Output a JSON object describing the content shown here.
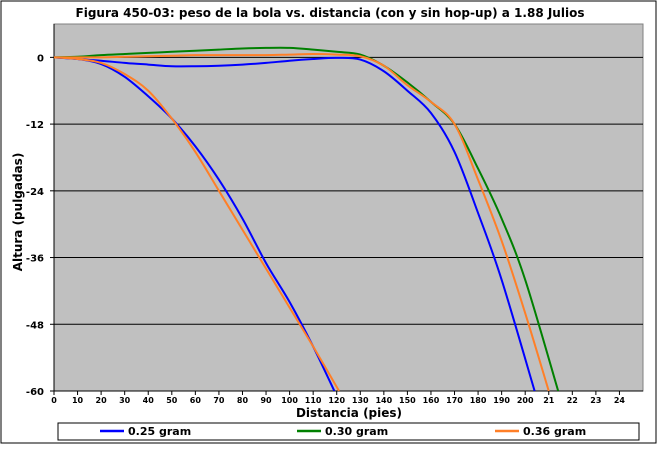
{
  "chart_data": {
    "type": "line",
    "title": "Figura 450-03: peso de la bola vs. distancia (con y sin hop-up) a 1.88 Julios",
    "xlabel": "Distancia (pies)",
    "ylabel": "Altura (pulgadas)",
    "xlim": [
      0,
      250
    ],
    "ylim": [
      -60,
      6
    ],
    "x_tick_labels": [
      "0",
      "10",
      "20",
      "30",
      "40",
      "50",
      "60",
      "70",
      "80",
      "90",
      "100",
      "110",
      "120",
      "130",
      "140",
      "150",
      "160",
      "170",
      "180",
      "190",
      "200",
      "21",
      "22",
      "23",
      "24"
    ],
    "y_ticks": [
      0,
      -12,
      -24,
      -36,
      -48,
      -60
    ],
    "grid": "horizontal",
    "legend_position": "bottom",
    "series": [
      {
        "name": "0.25 gram",
        "color": "#0000ff",
        "curves": [
          {
            "x": [
              0,
              10,
              20,
              30,
              40,
              50,
              60,
              70,
              80,
              90,
              100,
              110,
              119
            ],
            "y": [
              0,
              -0.3,
              -1.2,
              -3.5,
              -7,
              -11,
              -16,
              -22,
              -29,
              -37,
              -44,
              -52,
              -60
            ]
          },
          {
            "x": [
              0,
              10,
              20,
              30,
              40,
              50,
              60,
              70,
              80,
              90,
              100,
              110,
              120,
              130,
              140,
              150,
              160,
              170,
              180,
              190,
              204
            ],
            "y": [
              0,
              -0.3,
              -0.6,
              -1,
              -1.3,
              -1.6,
              -1.6,
              -1.5,
              -1.3,
              -1,
              -0.6,
              -0.3,
              -0.1,
              -0.4,
              -2.5,
              -6,
              -10,
              -17,
              -28,
              -40,
              -60
            ]
          }
        ]
      },
      {
        "name": "0.30 gram",
        "color": "#008000",
        "curves": [
          {
            "x": [
              0,
              10,
              20,
              30,
              40,
              50,
              60,
              70,
              80,
              90,
              100,
              110,
              120,
              130,
              140,
              150,
              160,
              170,
              180,
              190,
              200,
              214
            ],
            "y": [
              0,
              0.1,
              0.4,
              0.6,
              0.8,
              1,
              1.2,
              1.4,
              1.6,
              1.7,
              1.7,
              1.4,
              1,
              0.5,
              -1.5,
              -4.5,
              -8,
              -12,
              -20,
              -29,
              -40,
              -60
            ]
          }
        ]
      },
      {
        "name": "0.36 gram",
        "color": "#ff7f27",
        "curves": [
          {
            "x": [
              0,
              10,
              20,
              30,
              40,
              50,
              60,
              70,
              80,
              90,
              100,
              110,
              121
            ],
            "y": [
              0,
              -0.3,
              -1,
              -3,
              -6,
              -11,
              -17,
              -24,
              -31,
              -38,
              -45,
              -52,
              -60
            ]
          },
          {
            "x": [
              0,
              10,
              20,
              30,
              40,
              50,
              60,
              70,
              80,
              90,
              100,
              110,
              120,
              130,
              140,
              150,
              160,
              170,
              180,
              190,
              200,
              210
            ],
            "y": [
              0,
              0,
              0,
              0.1,
              0.2,
              0.3,
              0.4,
              0.4,
              0.4,
              0.4,
              0.5,
              0.6,
              0.5,
              0.2,
              -1.5,
              -5,
              -8,
              -12,
              -22,
              -33,
              -46,
              -60
            ]
          }
        ]
      }
    ]
  }
}
